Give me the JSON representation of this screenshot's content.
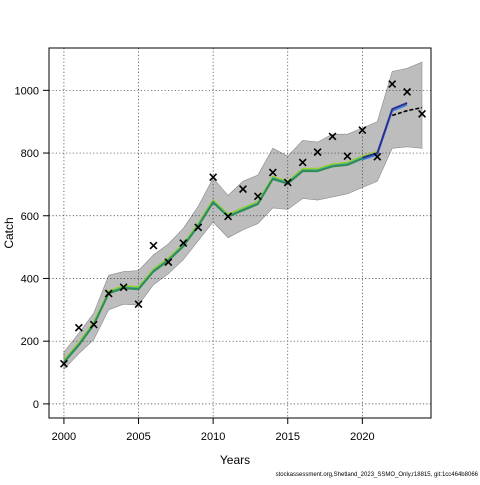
{
  "chart_data": {
    "type": "line",
    "xlabel": "Years",
    "ylabel": "Catch",
    "xlim": [
      1999.0,
      2024.6
    ],
    "ylim": [
      -45,
      1135
    ],
    "x_ticks": [
      2000,
      2005,
      2010,
      2015,
      2020
    ],
    "y_ticks": [
      0,
      200,
      400,
      600,
      800,
      1000
    ],
    "grid": true,
    "grid_style": "dotted",
    "footer_text": "stockassessment.org,Shetland_2023_SSMO_Only,r18815, git:1cc464b8066",
    "colors": {
      "band": "#bdbdbd",
      "band_edge": "#8a8a8a",
      "estimate_green": "#2e8b57",
      "estimate_yellow": "#9acd32",
      "estimate_teal": "#2aa198",
      "estimate_blue": "#3b78d6",
      "estimate_navy": "#2b2b8f",
      "median_line": "#000000",
      "observed_marker": "#000000"
    },
    "series": [
      {
        "kind": "confidence-band",
        "x": [
          2000,
          2001,
          2002,
          2003,
          2004,
          2005,
          2006,
          2007,
          2008,
          2009,
          2010,
          2011,
          2012,
          2013,
          2014,
          2015,
          2016,
          2017,
          2018,
          2019,
          2020,
          2021,
          2022,
          2023,
          2024
        ],
        "lower": [
          110,
          160,
          205,
          300,
          318,
          315,
          380,
          415,
          460,
          520,
          580,
          530,
          555,
          575,
          625,
          620,
          655,
          650,
          660,
          670,
          690,
          710,
          815,
          820,
          815
        ],
        "upper": [
          165,
          225,
          290,
          410,
          422,
          425,
          475,
          510,
          560,
          630,
          720,
          665,
          710,
          730,
          815,
          790,
          840,
          835,
          860,
          860,
          880,
          900,
          1060,
          1070,
          1090
        ]
      },
      {
        "kind": "estimate-line",
        "x": [
          2000,
          2001,
          2002,
          2003,
          2004,
          2005,
          2006,
          2007,
          2008,
          2009,
          2010,
          2011,
          2012,
          2013,
          2014,
          2015,
          2016,
          2017,
          2018,
          2019,
          2020,
          2021
        ],
        "y": [
          135,
          190,
          255,
          355,
          372,
          368,
          425,
          460,
          505,
          570,
          645,
          600,
          620,
          640,
          720,
          705,
          745,
          745,
          760,
          765,
          785,
          800
        ]
      },
      {
        "kind": "final-estimate",
        "x": [
          2020,
          2021,
          2022,
          2023
        ],
        "y": [
          785,
          800,
          940,
          960
        ]
      },
      {
        "kind": "median-dashed",
        "x": [
          2022,
          2023,
          2024
        ],
        "y": [
          920,
          935,
          945
        ]
      },
      {
        "kind": "observed",
        "x": [
          2000,
          2001,
          2002,
          2003,
          2004,
          2005,
          2006,
          2007,
          2008,
          2009,
          2010,
          2011,
          2012,
          2013,
          2014,
          2015,
          2016,
          2017,
          2018,
          2019,
          2020,
          2021,
          2022,
          2023,
          2024
        ],
        "y": [
          128,
          243,
          253,
          352,
          372,
          318,
          505,
          452,
          513,
          563,
          723,
          598,
          685,
          662,
          738,
          706,
          770,
          803,
          853,
          790,
          873,
          788,
          1020,
          995,
          925
        ]
      }
    ]
  }
}
